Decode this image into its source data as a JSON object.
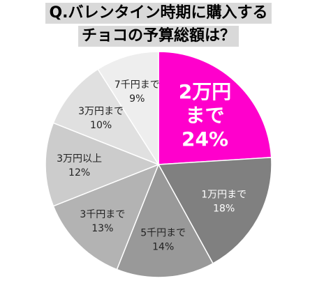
{
  "chart_data": {
    "type": "pie",
    "title_lines": [
      "Q.バレンタイン時期に購入する",
      "チョコの予算総額は？"
    ],
    "slices": [
      {
        "label": "2万円まで",
        "value": 24,
        "value_label": "24%",
        "color": "#ff00cc"
      },
      {
        "label": "1万円まで",
        "value": 18,
        "value_label": "18%",
        "color": "#808080"
      },
      {
        "label": "5千円まで",
        "value": 14,
        "value_label": "14%",
        "color": "#999999"
      },
      {
        "label": "3千円まで",
        "value": 13,
        "value_label": "13%",
        "color": "#b3b3b3"
      },
      {
        "label": "3万円以上",
        "value": 12,
        "value_label": "12%",
        "color": "#cccccc"
      },
      {
        "label": "3万円まで",
        "value": 10,
        "value_label": "10%",
        "color": "#e0e0e0"
      },
      {
        "label": "7千円まで",
        "value": 9,
        "value_label": "9%",
        "color": "#eeeeee"
      }
    ],
    "start": "12 o'clock",
    "direction": "clockwise"
  }
}
